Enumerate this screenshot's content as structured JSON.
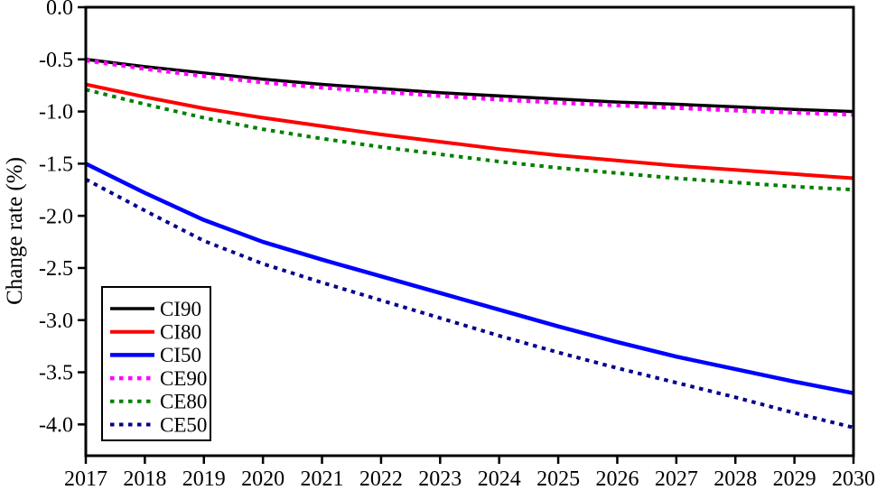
{
  "figure": {
    "ylabel": "Change rate (%)"
  },
  "chart_data": {
    "type": "line",
    "title": "",
    "xlabel": "",
    "ylabel": "Change rate (%)",
    "x": [
      2017,
      2018,
      2019,
      2020,
      2021,
      2022,
      2023,
      2024,
      2025,
      2026,
      2027,
      2028,
      2029,
      2030
    ],
    "x_tick_labels": [
      "2017",
      "2018",
      "2019",
      "2020",
      "2021",
      "2022",
      "2023",
      "2024",
      "2025",
      "2026",
      "2027",
      "2028",
      "2029",
      "2030"
    ],
    "y_ticks": [
      0.0,
      -0.5,
      -1.0,
      -1.5,
      -2.0,
      -2.5,
      -3.0,
      -3.5,
      -4.0
    ],
    "y_tick_labels": [
      "0.0",
      "-0.5",
      "-1.0",
      "-1.5",
      "-2.0",
      "-2.5",
      "-3.0",
      "-3.5",
      "-4.0"
    ],
    "xlim": [
      2017,
      2030
    ],
    "ylim": [
      -4.3,
      0.0
    ],
    "grid": false,
    "legend_position": "lower-left-inside",
    "series": [
      {
        "name": "CI90",
        "color": "#000000",
        "line_style": "solid",
        "line_width": 3.5,
        "values": [
          -0.5,
          -0.57,
          -0.63,
          -0.69,
          -0.74,
          -0.78,
          -0.82,
          -0.85,
          -0.88,
          -0.91,
          -0.93,
          -0.955,
          -0.98,
          -1.0
        ]
      },
      {
        "name": "CI80",
        "color": "#ff0000",
        "line_style": "solid",
        "line_width": 4,
        "values": [
          -0.74,
          -0.86,
          -0.97,
          -1.06,
          -1.14,
          -1.22,
          -1.29,
          -1.36,
          -1.42,
          -1.47,
          -1.52,
          -1.56,
          -1.6,
          -1.64
        ]
      },
      {
        "name": "CI50",
        "color": "#0000ff",
        "line_style": "solid",
        "line_width": 4.5,
        "values": [
          -1.5,
          -1.78,
          -2.04,
          -2.25,
          -2.42,
          -2.58,
          -2.74,
          -2.9,
          -3.06,
          -3.21,
          -3.35,
          -3.47,
          -3.59,
          -3.7
        ]
      },
      {
        "name": "CE90",
        "color": "#ff00ff",
        "line_style": "dotted",
        "line_width": 4.5,
        "values": [
          -0.51,
          -0.59,
          -0.66,
          -0.72,
          -0.77,
          -0.81,
          -0.85,
          -0.885,
          -0.915,
          -0.94,
          -0.965,
          -0.99,
          -1.01,
          -1.03
        ]
      },
      {
        "name": "CE80",
        "color": "#008000",
        "line_style": "dotted",
        "line_width": 4,
        "values": [
          -0.79,
          -0.93,
          -1.06,
          -1.17,
          -1.26,
          -1.34,
          -1.41,
          -1.48,
          -1.54,
          -1.59,
          -1.64,
          -1.68,
          -1.72,
          -1.75
        ]
      },
      {
        "name": "CE50",
        "color": "#00008b",
        "line_style": "dotted",
        "line_width": 4,
        "values": [
          -1.65,
          -1.95,
          -2.24,
          -2.46,
          -2.64,
          -2.81,
          -2.98,
          -3.15,
          -3.31,
          -3.46,
          -3.6,
          -3.74,
          -3.89,
          -4.03
        ]
      }
    ],
    "legend_order": [
      "CI90",
      "CI80",
      "CI50",
      "CE90",
      "CE80",
      "CE50"
    ]
  }
}
